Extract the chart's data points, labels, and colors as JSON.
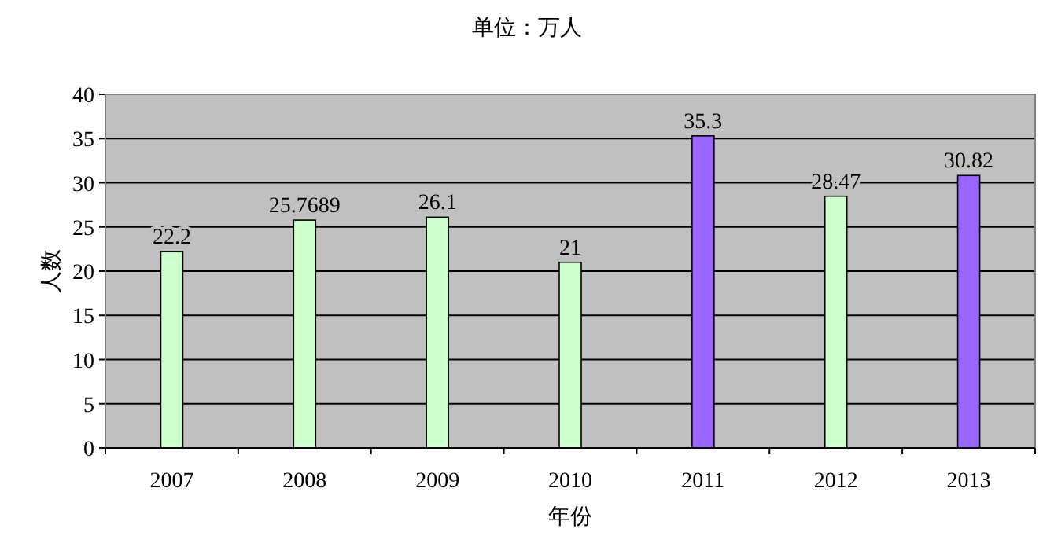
{
  "chart_data": {
    "type": "bar",
    "title": "单位：万人",
    "xlabel": "年份",
    "ylabel": "人数",
    "categories": [
      "2007",
      "2008",
      "2009",
      "2010",
      "2011",
      "2012",
      "2013"
    ],
    "values": [
      22.2,
      25.7689,
      26.1,
      21,
      35.3,
      28.47,
      30.82
    ],
    "colors": [
      "#ccffcc",
      "#ccffcc",
      "#ccffcc",
      "#ccffcc",
      "#9966ff",
      "#ccffcc",
      "#9966ff"
    ],
    "ylim": [
      0,
      40
    ],
    "yticks": [
      0,
      5,
      10,
      15,
      20,
      25,
      30,
      35,
      40
    ],
    "grid": "y",
    "data_labels": true
  }
}
